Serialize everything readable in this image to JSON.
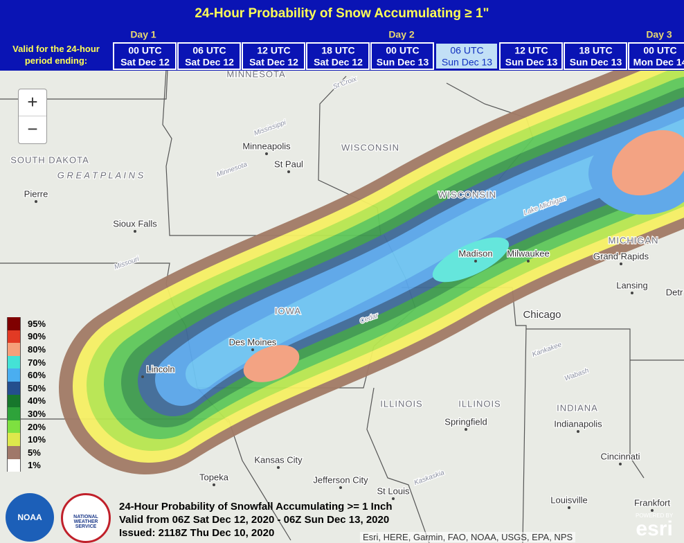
{
  "header": {
    "title": "24-Hour Probability of Snow Accumulating ≥ 1\"",
    "valid_label": "Valid for the 24-hour period ending:",
    "days": [
      "Day 1",
      "Day 2",
      "Day 3"
    ],
    "tabs": [
      {
        "time": "00 UTC",
        "date": "Sat Dec 12"
      },
      {
        "time": "06 UTC",
        "date": "Sat Dec 12"
      },
      {
        "time": "12 UTC",
        "date": "Sat Dec 12"
      },
      {
        "time": "18 UTC",
        "date": "Sat Dec 12"
      },
      {
        "time": "00 UTC",
        "date": "Sun Dec 13"
      },
      {
        "time": "06 UTC",
        "date": "Sun Dec 13"
      },
      {
        "time": "12 UTC",
        "date": "Sun Dec 13"
      },
      {
        "time": "18 UTC",
        "date": "Sun Dec 13"
      },
      {
        "time": "00 UTC",
        "date": "Mon Dec 14"
      }
    ],
    "selected_tab": 5
  },
  "controls": {
    "zoom_in": "+",
    "zoom_out": "−"
  },
  "map_labels": [
    "MINNESOTA",
    "SOUTH DAKOTA",
    "G R E A T   P L A I N S",
    "Pierre",
    "Minneapolis",
    "St Paul",
    "WISCONSIN",
    "WISCONSIN",
    "Sioux Falls",
    "Madison",
    "Milwaukee",
    "Lake Michigan",
    "MICHIGAN",
    "Grand Rapids",
    "Lansing",
    "Detr",
    "IOWA",
    "Des Moines",
    "Lincoln",
    "Chicago",
    "Kankakee",
    "Wabash",
    "ILLINOIS",
    "ILLINOIS",
    "INDIANA",
    "Springfield",
    "Indianapolis",
    "Cincinnati",
    "Kansas City",
    "Topeka",
    "Jefferson City",
    "St Louis",
    "Louisville",
    "Frankfort",
    "Missouri",
    "Mississippi",
    "Minnesota",
    "St Croix",
    "Cedar",
    "Kaskaskia"
  ],
  "legend": [
    "95%",
    "90%",
    "80%",
    "70%",
    "60%",
    "50%",
    "40%",
    "30%",
    "20%",
    "10%",
    "5%",
    "1%"
  ],
  "footer": [
    "24-Hour Probability of Snowfall Accumulating >= 1 Inch",
    "Valid from 06Z Sat Dec 12, 2020 - 06Z Sun Dec 13, 2020",
    "Issued: 2118Z Thu Dec 10, 2020"
  ],
  "logos": {
    "noaa": "NOAA",
    "nws": "NATIONAL WEATHER SERVICE",
    "powered": "POWERED BY",
    "esri": "esri"
  },
  "attribution": "Esri, HERE, Garmin, FAO, NOAA, USGS, EPA, NPS"
}
